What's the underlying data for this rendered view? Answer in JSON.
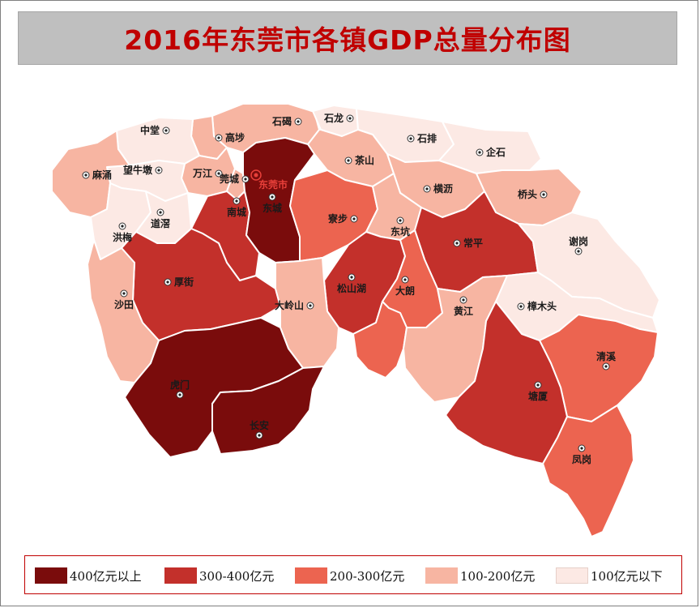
{
  "title": "2016年东莞市各镇GDP总量分布图",
  "colors": {
    "c400": "#7a0c0c",
    "c300": "#c3302b",
    "c200": "#ec6450",
    "c100": "#f7b5a2",
    "c0": "#fce9e4",
    "title_bg": "#bfbfbf",
    "title_text": "#c00000",
    "legend_border": "#c00000"
  },
  "legend": [
    {
      "label": "400亿元以上",
      "color": "#7a0c0c"
    },
    {
      "label": "300-400亿元",
      "color": "#c3302b"
    },
    {
      "label": "200-300亿元",
      "color": "#ec6450"
    },
    {
      "label": "100-200亿元",
      "color": "#f7b5a2"
    },
    {
      "label": "100亿元以下",
      "color": "#fce9e4"
    }
  ],
  "map": {
    "capital_label": "东莞市",
    "towns": [
      {
        "name": "石碣",
        "gdp_class": "100-200亿元"
      },
      {
        "name": "石龙",
        "gdp_class": "100亿元以下"
      },
      {
        "name": "高埗",
        "gdp_class": "100-200亿元"
      },
      {
        "name": "中堂",
        "gdp_class": "100亿元以下"
      },
      {
        "name": "石排",
        "gdp_class": "100亿元以下"
      },
      {
        "name": "企石",
        "gdp_class": "100亿元以下"
      },
      {
        "name": "茶山",
        "gdp_class": "100-200亿元"
      },
      {
        "name": "万江",
        "gdp_class": "100-200亿元"
      },
      {
        "name": "莞城",
        "gdp_class": "100-200亿元"
      },
      {
        "name": "望牛墩",
        "gdp_class": "100亿元以下"
      },
      {
        "name": "麻涌",
        "gdp_class": "100-200亿元"
      },
      {
        "name": "横沥",
        "gdp_class": "100-200亿元"
      },
      {
        "name": "桥头",
        "gdp_class": "100-200亿元"
      },
      {
        "name": "南城",
        "gdp_class": "300-400亿元"
      },
      {
        "name": "东城",
        "gdp_class": "400亿元以上"
      },
      {
        "name": "寮步",
        "gdp_class": "200-300亿元"
      },
      {
        "name": "东坑",
        "gdp_class": "100-200亿元"
      },
      {
        "name": "洪梅",
        "gdp_class": "100亿元以下"
      },
      {
        "name": "道滘",
        "gdp_class": "100亿元以下"
      },
      {
        "name": "常平",
        "gdp_class": "300-400亿元"
      },
      {
        "name": "谢岗",
        "gdp_class": "100亿元以下"
      },
      {
        "name": "厚街",
        "gdp_class": "300-400亿元"
      },
      {
        "name": "松山湖",
        "gdp_class": "300-400亿元"
      },
      {
        "name": "大朗",
        "gdp_class": "200-300亿元"
      },
      {
        "name": "沙田",
        "gdp_class": "100-200亿元"
      },
      {
        "name": "大岭山",
        "gdp_class": "100-200亿元"
      },
      {
        "name": "黄江",
        "gdp_class": "100-200亿元"
      },
      {
        "name": "樟木头",
        "gdp_class": "100亿元以下"
      },
      {
        "name": "清溪",
        "gdp_class": "200-300亿元"
      },
      {
        "name": "塘厦",
        "gdp_class": "300-400亿元"
      },
      {
        "name": "虎门",
        "gdp_class": "400亿元以上"
      },
      {
        "name": "长安",
        "gdp_class": "400亿元以上"
      },
      {
        "name": "凤岗",
        "gdp_class": "200-300亿元"
      }
    ]
  }
}
